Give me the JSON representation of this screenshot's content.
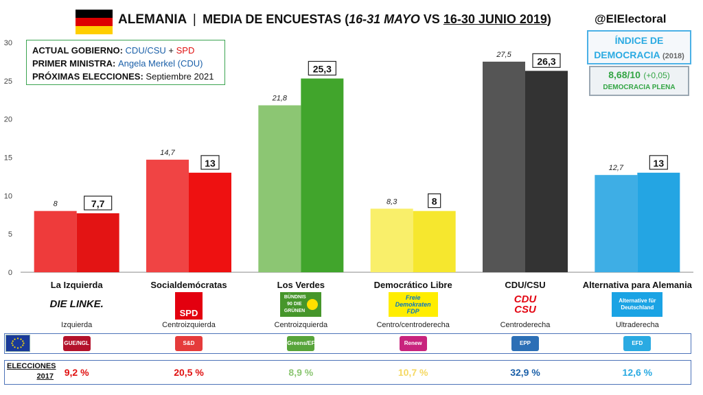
{
  "header": {
    "country": "ALEMANIA",
    "separator": "|",
    "subtitle_pre": "MEDIA DE ENCUESTAS (",
    "range1": "16-31 MAYO",
    "vs": " VS ",
    "range2": "16-30 JUNIO 2019",
    "close": ")",
    "handle": "@ElElectoral",
    "flag_colors": [
      "#000000",
      "#dd0000",
      "#ffce00"
    ]
  },
  "info": {
    "gov_label": "ACTUAL GOBIERNO: ",
    "gov_a": "CDU/CSU",
    "gov_plus": " + ",
    "gov_b": "SPD",
    "pm_label": "PRIMER MINISTRA: ",
    "pm_value": "Angela Merkel (CDU)",
    "next_label": "PRÓXIMAS ELECCIONES: ",
    "next_value": "Septiembre 2021"
  },
  "democracy": {
    "title1": "ÍNDICE DE",
    "title2": "DEMOCRACIA",
    "year": "(2018)",
    "score": "8,68/10",
    "change": "(+0,05)",
    "label": "DEMOCRACIA PLENA"
  },
  "chart_data": {
    "type": "bar",
    "ylim": [
      0,
      30
    ],
    "yticks": [
      0,
      5,
      10,
      15,
      20,
      25,
      30
    ],
    "categories": [
      "La Izquierda",
      "Socialdemócratas",
      "Los Verdes",
      "Democrático Libre",
      "CDU/CSU",
      "Alternativa para Alemania"
    ],
    "series": [
      {
        "name": "16-31 MAYO",
        "values": [
          8,
          14.7,
          21.8,
          8.3,
          27.5,
          12.7
        ],
        "labels": [
          "8",
          "14,7",
          "21,8",
          "8,3",
          "27,5",
          "12,7"
        ]
      },
      {
        "name": "16-30 JUNIO 2019",
        "values": [
          7.7,
          13,
          25.3,
          8,
          26.3,
          13
        ],
        "labels": [
          "7,7",
          "13",
          "25,3",
          "8",
          "26,3",
          "13"
        ]
      }
    ],
    "colors_may": [
      "#ee3b3b",
      "#f04444",
      "#8cc673",
      "#f9ef6a",
      "#555555",
      "#3eaee5"
    ],
    "colors_june": [
      "#e31414",
      "#ee1111",
      "#41a52c",
      "#f6e72e",
      "#333333",
      "#24a5e3"
    ]
  },
  "parties": [
    {
      "name": "La Izquierda",
      "logo": "DIE LINKE.",
      "ideology": "Izquierda",
      "group": "GUE/NGL",
      "group_color": "#b3122b",
      "result_2017": "9,2 %",
      "result_color": "#e01010"
    },
    {
      "name": "Socialdemócratas",
      "logo": "SPD",
      "ideology": "Centroizquierda",
      "group": "S&D",
      "group_color": "#e53b3b",
      "result_2017": "20,5 %",
      "result_color": "#e01010"
    },
    {
      "name": "Los Verdes",
      "logo": "BÜNDNIS 90 DIE GRÜNEN",
      "ideology": "Centroizquierda",
      "group": "Greens/EFA",
      "group_color": "#57a43a",
      "result_2017": "8,9 %",
      "result_color": "#8cc673"
    },
    {
      "name": "Democrático Libre",
      "logo": "Freie Demokraten FDP",
      "ideology": "Centro/centroderecha",
      "group": "Renew",
      "group_color": "#c8247d",
      "result_2017": "10,7 %",
      "result_color": "#f5d862"
    },
    {
      "name": "CDU/CSU",
      "logo": "CDU CSU",
      "ideology": "Centroderecha",
      "group": "EPP",
      "group_color": "#2c6fb6",
      "result_2017": "32,9 %",
      "result_color": "#1a5fa8"
    },
    {
      "name": "Alternativa para Alemania",
      "logo": "Alternative für Deutschland",
      "ideology": "Ultraderecha",
      "group": "EFD",
      "group_color": "#2aaae2",
      "result_2017": "12,6 %",
      "result_color": "#2aaae2"
    }
  ],
  "elections": {
    "label1": "ELECCIONES",
    "label2": "2017"
  }
}
